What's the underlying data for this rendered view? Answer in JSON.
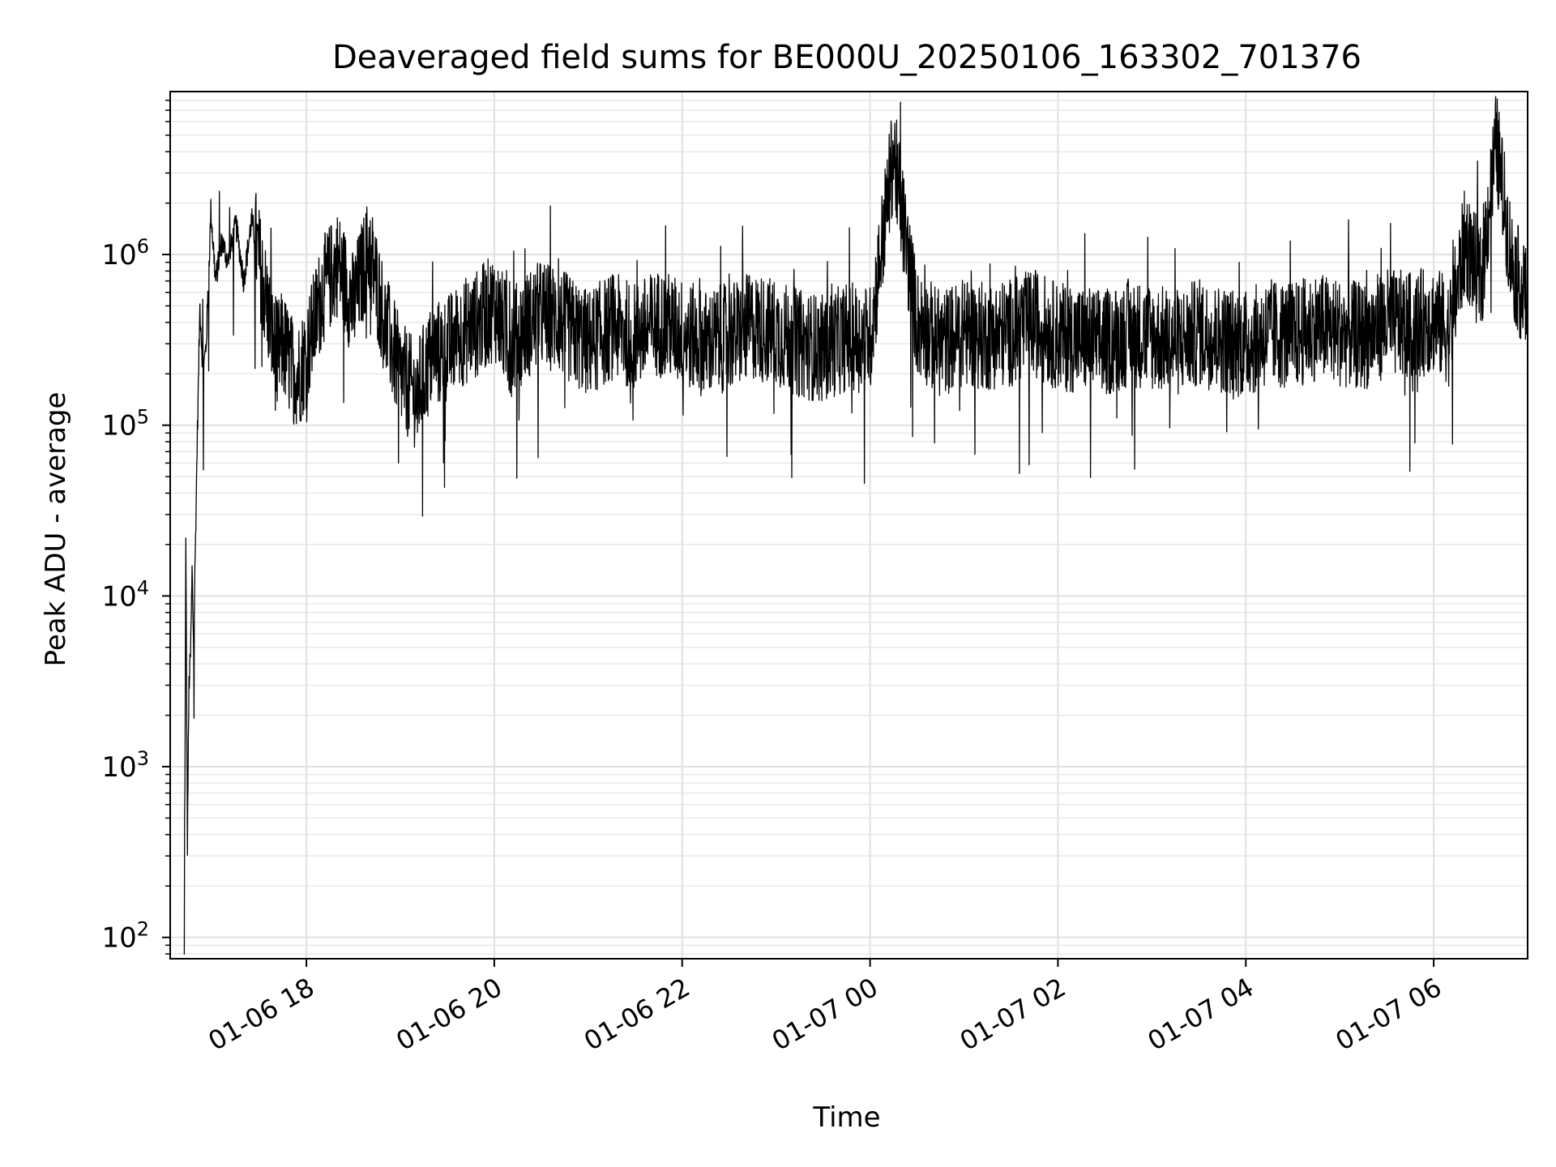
{
  "chart_data": {
    "type": "line",
    "title": "Deaveraged field sums for BE000U_20250106_163302_701376",
    "xlabel": "Time",
    "ylabel": "Peak ADU - average",
    "yscale": "log",
    "ylim": [
      75,
      9000000
    ],
    "xlim": [
      "2025-01-06 16:33",
      "2025-01-07 07:00"
    ],
    "grid": "major and minor",
    "line_color": "#000000",
    "x_ticks": [
      {
        "t": "2025-01-06 18:00",
        "label": "01-06 18"
      },
      {
        "t": "2025-01-06 20:00",
        "label": "01-06 20"
      },
      {
        "t": "2025-01-06 22:00",
        "label": "01-06 22"
      },
      {
        "t": "2025-01-07 00:00",
        "label": "01-07 00"
      },
      {
        "t": "2025-01-07 02:00",
        "label": "01-07 02"
      },
      {
        "t": "2025-01-07 04:00",
        "label": "01-07 04"
      },
      {
        "t": "2025-01-07 06:00",
        "label": "01-07 06"
      }
    ],
    "y_ticks": [
      {
        "value": 100,
        "base": "10",
        "exp": "2"
      },
      {
        "value": 1000,
        "base": "10",
        "exp": "3"
      },
      {
        "value": 10000,
        "base": "10",
        "exp": "4"
      },
      {
        "value": 100000,
        "base": "10",
        "exp": "5"
      },
      {
        "value": 1000000,
        "base": "10",
        "exp": "6"
      }
    ],
    "series": [
      {
        "x": [
          "2025-01-06 16:42",
          "2025-01-06 16:43",
          "2025-01-06 16:44",
          "2025-01-06 16:45",
          "2025-01-06 16:46",
          "2025-01-06 16:47",
          "2025-01-06 16:48",
          "2025-01-06 16:50",
          "2025-01-06 16:52",
          "2025-01-06 16:54",
          "2025-01-06 16:56",
          "2025-01-06 16:59",
          "2025-01-06 17:02",
          "2025-01-06 17:06",
          "2025-01-06 17:10",
          "2025-01-06 17:15",
          "2025-01-06 17:20",
          "2025-01-06 17:25",
          "2025-01-06 17:30",
          "2025-01-06 17:35",
          "2025-01-06 17:40",
          "2025-01-06 17:45",
          "2025-01-06 17:50",
          "2025-01-06 17:55",
          "2025-01-06 18:00",
          "2025-01-06 18:10",
          "2025-01-06 18:20",
          "2025-01-06 18:30",
          "2025-01-06 18:40",
          "2025-01-06 18:50",
          "2025-01-06 19:00",
          "2025-01-06 19:10",
          "2025-01-06 19:20",
          "2025-01-06 19:30",
          "2025-01-06 19:40",
          "2025-01-06 19:50",
          "2025-01-06 20:00",
          "2025-01-06 20:10",
          "2025-01-06 20:20",
          "2025-01-06 20:30",
          "2025-01-06 20:40",
          "2025-01-06 20:50",
          "2025-01-06 21:00",
          "2025-01-06 21:15",
          "2025-01-06 21:30",
          "2025-01-06 21:45",
          "2025-01-06 22:00",
          "2025-01-06 22:15",
          "2025-01-06 22:30",
          "2025-01-06 22:45",
          "2025-01-06 23:00",
          "2025-01-06 23:15",
          "2025-01-06 23:30",
          "2025-01-06 23:45",
          "2025-01-07 00:00",
          "2025-01-07 00:15",
          "2025-01-07 00:30",
          "2025-01-07 00:45",
          "2025-01-07 01:00",
          "2025-01-07 01:15",
          "2025-01-07 01:30",
          "2025-01-07 01:45",
          "2025-01-07 02:00",
          "2025-01-07 02:15",
          "2025-01-07 02:30",
          "2025-01-07 02:45",
          "2025-01-07 03:00",
          "2025-01-07 03:15",
          "2025-01-07 03:30",
          "2025-01-07 03:45",
          "2025-01-07 04:00",
          "2025-01-07 04:15",
          "2025-01-07 04:30",
          "2025-01-07 04:45",
          "2025-01-07 05:00",
          "2025-01-07 05:15",
          "2025-01-07 05:30",
          "2025-01-07 05:45",
          "2025-01-07 06:00",
          "2025-01-07 06:10",
          "2025-01-07 06:20",
          "2025-01-07 06:30",
          "2025-01-07 06:40",
          "2025-01-07 06:50",
          "2025-01-07 07:00"
        ],
        "y": [
          75,
          20000,
          350,
          3000,
          4500,
          14000,
          5000,
          60000,
          500000,
          200000,
          300000,
          1800000,
          700000,
          1200000,
          900000,
          1500000,
          700000,
          1600000,
          900000,
          500000,
          250000,
          300000,
          220000,
          200000,
          260000,
          600000,
          900000,
          500000,
          1100000,
          400000,
          200000,
          150000,
          250000,
          280000,
          350000,
          400000,
          500000,
          300000,
          380000,
          450000,
          420000,
          350000,
          300000,
          380000,
          330000,
          400000,
          350000,
          300000,
          330000,
          380000,
          350000,
          300000,
          280000,
          330000,
          320000,
          4000000,
          400000,
          300000,
          350000,
          330000,
          350000,
          400000,
          330000,
          320000,
          300000,
          350000,
          330000,
          300000,
          350000,
          320000,
          300000,
          350000,
          330000,
          380000,
          350000,
          330000,
          400000,
          380000,
          420000,
          350000,
          1200000,
          700000,
          4500000,
          900000,
          500000
        ],
        "line_color": "#000000"
      }
    ]
  }
}
